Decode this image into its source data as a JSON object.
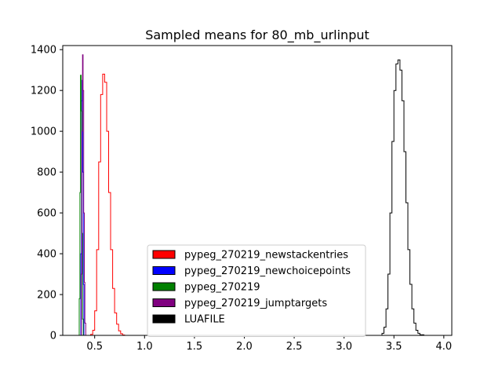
{
  "chart_data": {
    "type": "histogram",
    "title": "Sampled means for 80_mb_urlinput",
    "xlabel": "",
    "ylabel": "",
    "xlim": [
      0.18,
      4.08
    ],
    "ylim": [
      0,
      1420
    ],
    "x_ticks": [
      0.5,
      1.0,
      1.5,
      2.0,
      2.5,
      3.0,
      3.5,
      4.0
    ],
    "x_tick_labels": [
      "0.5",
      "1.0",
      "1.5",
      "2.0",
      "2.5",
      "3.0",
      "3.5",
      "4.0"
    ],
    "y_ticks": [
      0,
      200,
      400,
      600,
      800,
      1000,
      1200,
      1400
    ],
    "y_tick_labels": [
      "0",
      "200",
      "400",
      "600",
      "800",
      "1000",
      "1200",
      "1400"
    ],
    "grid": false,
    "legend_position": "lower center",
    "series": [
      {
        "name": "pypeg_270219_newstackentries",
        "color": "#ff0000",
        "fill": false,
        "points": [
          [
            0.44,
            0
          ],
          [
            0.46,
            5
          ],
          [
            0.48,
            25
          ],
          [
            0.5,
            120
          ],
          [
            0.52,
            420
          ],
          [
            0.54,
            850
          ],
          [
            0.56,
            1180
          ],
          [
            0.58,
            1280
          ],
          [
            0.6,
            1240
          ],
          [
            0.62,
            1000
          ],
          [
            0.64,
            700
          ],
          [
            0.66,
            420
          ],
          [
            0.68,
            230
          ],
          [
            0.7,
            110
          ],
          [
            0.72,
            55
          ],
          [
            0.74,
            22
          ],
          [
            0.76,
            8
          ],
          [
            0.78,
            2
          ],
          [
            0.8,
            0
          ]
        ]
      },
      {
        "name": "pypeg_270219_newchoicepoints",
        "color": "#0000ff",
        "fill": false,
        "points": [
          [
            0.355,
            0
          ],
          [
            0.362,
            400
          ],
          [
            0.368,
            1150
          ],
          [
            0.374,
            1250
          ],
          [
            0.38,
            800
          ],
          [
            0.386,
            250
          ],
          [
            0.392,
            0
          ]
        ]
      },
      {
        "name": "pypeg_270219",
        "color": "#008000",
        "fill": false,
        "points": [
          [
            0.335,
            0
          ],
          [
            0.345,
            180
          ],
          [
            0.352,
            700
          ],
          [
            0.358,
            1275
          ],
          [
            0.364,
            1100
          ],
          [
            0.37,
            500
          ],
          [
            0.378,
            80
          ],
          [
            0.385,
            0
          ]
        ]
      },
      {
        "name": "pypeg_270219_jumptargets",
        "color": "#800080",
        "fill": false,
        "points": [
          [
            0.36,
            0
          ],
          [
            0.366,
            300
          ],
          [
            0.372,
            1000
          ],
          [
            0.378,
            1375
          ],
          [
            0.384,
            1200
          ],
          [
            0.39,
            600
          ],
          [
            0.396,
            260
          ],
          [
            0.402,
            60
          ],
          [
            0.41,
            0
          ]
        ]
      },
      {
        "name": "LUAFILE",
        "color": "#000000",
        "fill": false,
        "points": [
          [
            3.36,
            0
          ],
          [
            3.38,
            10
          ],
          [
            3.4,
            40
          ],
          [
            3.42,
            130
          ],
          [
            3.44,
            300
          ],
          [
            3.46,
            600
          ],
          [
            3.48,
            950
          ],
          [
            3.5,
            1200
          ],
          [
            3.52,
            1330
          ],
          [
            3.54,
            1350
          ],
          [
            3.56,
            1300
          ],
          [
            3.58,
            1150
          ],
          [
            3.6,
            900
          ],
          [
            3.62,
            650
          ],
          [
            3.64,
            420
          ],
          [
            3.66,
            250
          ],
          [
            3.68,
            130
          ],
          [
            3.7,
            60
          ],
          [
            3.72,
            25
          ],
          [
            3.74,
            10
          ],
          [
            3.76,
            3
          ],
          [
            3.8,
            0
          ]
        ]
      }
    ]
  }
}
